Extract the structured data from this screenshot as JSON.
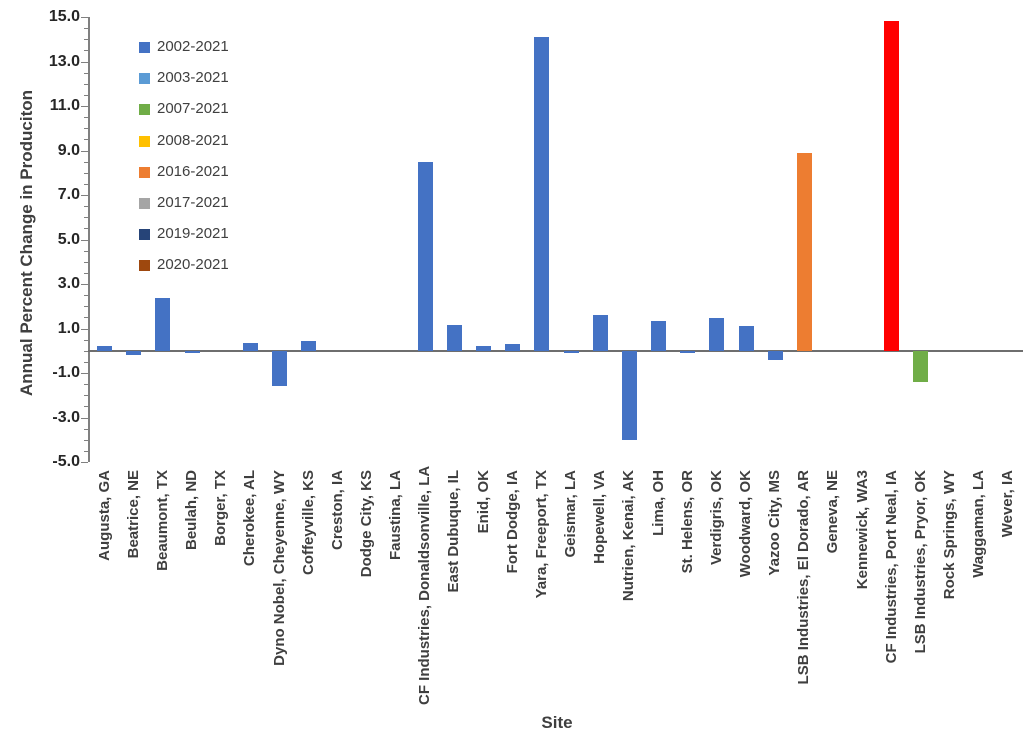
{
  "chart_data": {
    "type": "bar",
    "title": "",
    "xlabel": "Site",
    "ylabel": "Annual Percent Change in Produciton",
    "ylim": [
      -5.0,
      15.0
    ],
    "y_major_step": 2.0,
    "y_minor_step": 0.5,
    "y_tick_labels": [
      "15.0",
      "13.0",
      "11.0",
      "9.0",
      "7.0",
      "5.0",
      "3.0",
      "1.0",
      "-1.0",
      "-3.0",
      "-5.0"
    ],
    "grid": false,
    "legend_position": "inside-upper-left",
    "legend": [
      {
        "label": "2002-2021",
        "color": "#4472C4"
      },
      {
        "label": "2003-2021",
        "color": "#5B9BD5"
      },
      {
        "label": "2007-2021",
        "color": "#70AD47"
      },
      {
        "label": "2008-2021",
        "color": "#FFC000"
      },
      {
        "label": "2016-2021",
        "color": "#ED7D31"
      },
      {
        "label": "2017-2021",
        "color": "#A5A5A5"
      },
      {
        "label": "2019-2021",
        "color": "#264478"
      },
      {
        "label": "2020-2021",
        "color": "#9E480E"
      }
    ],
    "default_bar_color": "#4472C4",
    "axis_color": "#808080",
    "points": [
      {
        "site": "Augusta, GA",
        "value": 0.2
      },
      {
        "site": "Beatrice, NE",
        "value": -0.2
      },
      {
        "site": "Beaumont, TX",
        "value": 2.35
      },
      {
        "site": "Beulah, ND",
        "value": -0.1
      },
      {
        "site": "Borger, TX",
        "value": 0.0
      },
      {
        "site": "Cherokee, AL",
        "value": 0.35
      },
      {
        "site": "Dyno Nobel, Cheyenne, WY",
        "value": -1.6
      },
      {
        "site": "Coffeyville, KS",
        "value": 0.45
      },
      {
        "site": "Creston, IA",
        "value": 0.0
      },
      {
        "site": "Dodge City, KS",
        "value": 0.0
      },
      {
        "site": "Faustina, LA",
        "value": 0.0
      },
      {
        "site": "CF Industries, Donaldsonville, LA",
        "value": 8.5
      },
      {
        "site": "East Dubuque, IL",
        "value": 1.15
      },
      {
        "site": "Enid, OK",
        "value": 0.2
      },
      {
        "site": "Fort Dodge, IA",
        "value": 0.3
      },
      {
        "site": "Yara, Freeport, TX",
        "value": 14.1
      },
      {
        "site": "Geismar, LA",
        "value": -0.1
      },
      {
        "site": "Hopewell, VA",
        "value": 1.6
      },
      {
        "site": "Nutrien, Kenai, AK",
        "value": -4.0
      },
      {
        "site": "Lima, OH",
        "value": 1.35
      },
      {
        "site": "St. Helens, OR",
        "value": -0.1
      },
      {
        "site": "Verdigris, OK",
        "value": 1.45
      },
      {
        "site": "Woodward, OK",
        "value": 1.1
      },
      {
        "site": "Yazoo City, MS",
        "value": -0.4
      },
      {
        "site": "LSB Industries, El Dorado, AR",
        "value": 8.9,
        "color": "#ED7D31",
        "series": "2016-2021"
      },
      {
        "site": "Geneva, NE",
        "value": 0.0
      },
      {
        "site": "Kennewick, WA3",
        "value": 0.0
      },
      {
        "site": "CF Industries, Port Neal, IA",
        "value": 14.8,
        "color": "#FF0000"
      },
      {
        "site": "LSB Industries, Pryor, OK",
        "value": -1.4,
        "color": "#70AD47",
        "series": "2007-2021"
      },
      {
        "site": "Rock Springs, WY",
        "value": 0.0
      },
      {
        "site": "Waggaman, LA",
        "value": 0.0
      },
      {
        "site": "Wever, IA",
        "value": 0.0
      }
    ]
  }
}
